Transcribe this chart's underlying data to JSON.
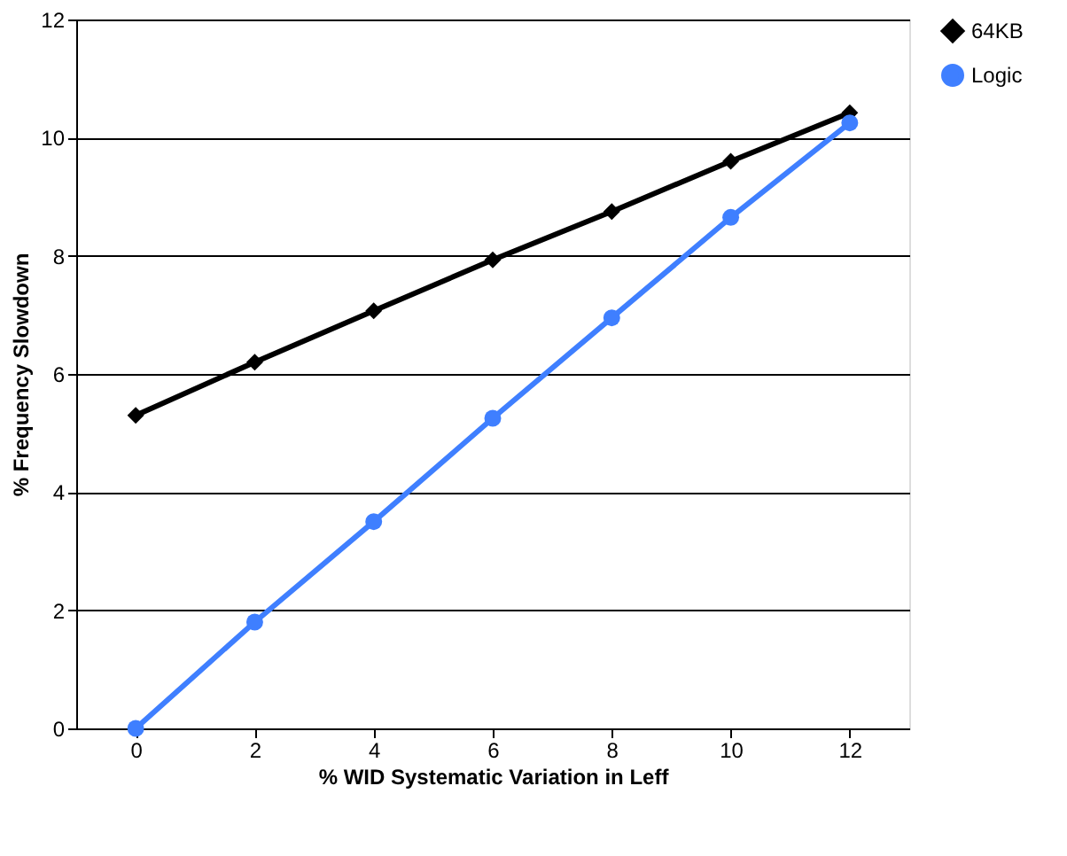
{
  "chart_data": {
    "type": "line",
    "xlabel": "% WID Systematic Variation in Leff",
    "ylabel": "% Frequency Slowdown",
    "x": [
      0,
      2,
      4,
      6,
      8,
      10,
      12
    ],
    "series": [
      {
        "name": "64KB",
        "color": "#000000",
        "marker": "diamond",
        "values": [
          5.3,
          6.2,
          7.07,
          7.93,
          8.75,
          9.6,
          10.42
        ]
      },
      {
        "name": "Logic",
        "color": "#3f7fff",
        "marker": "circle",
        "values": [
          0,
          1.8,
          3.5,
          5.25,
          6.95,
          8.65,
          10.25
        ]
      }
    ],
    "xlim": [
      -1,
      13
    ],
    "xticks": [
      0,
      2,
      4,
      6,
      8,
      10,
      12
    ],
    "ylim": [
      0,
      12
    ],
    "yticks": [
      0,
      2,
      4,
      6,
      8,
      10,
      12
    ],
    "grid": "y",
    "legend": "right",
    "line_style": "solid"
  }
}
